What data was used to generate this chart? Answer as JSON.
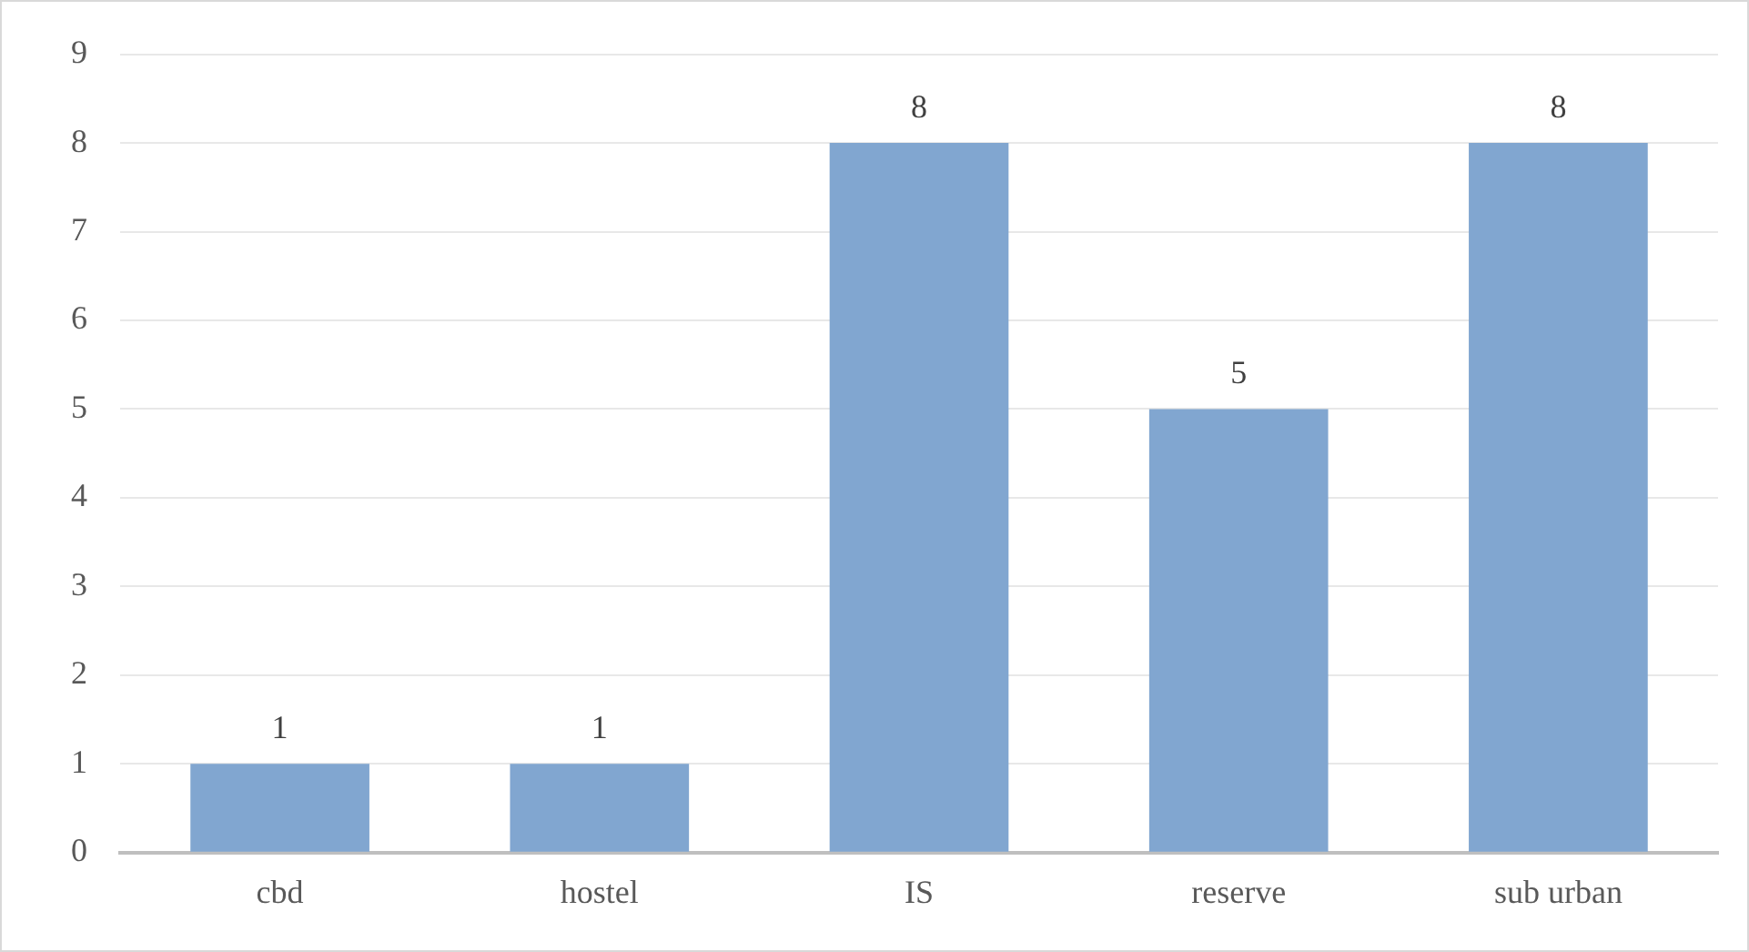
{
  "chart_data": {
    "type": "bar",
    "categories": [
      "cbd",
      "hostel",
      "IS",
      "reserve",
      "sub urban"
    ],
    "values": [
      1,
      1,
      8,
      5,
      8
    ],
    "color": "#81a6d0",
    "ylim": [
      0,
      9
    ],
    "yticks": [
      0,
      1,
      2,
      3,
      4,
      5,
      6,
      7,
      8,
      9
    ],
    "grid": "y",
    "data_labels": true,
    "legend": false
  }
}
